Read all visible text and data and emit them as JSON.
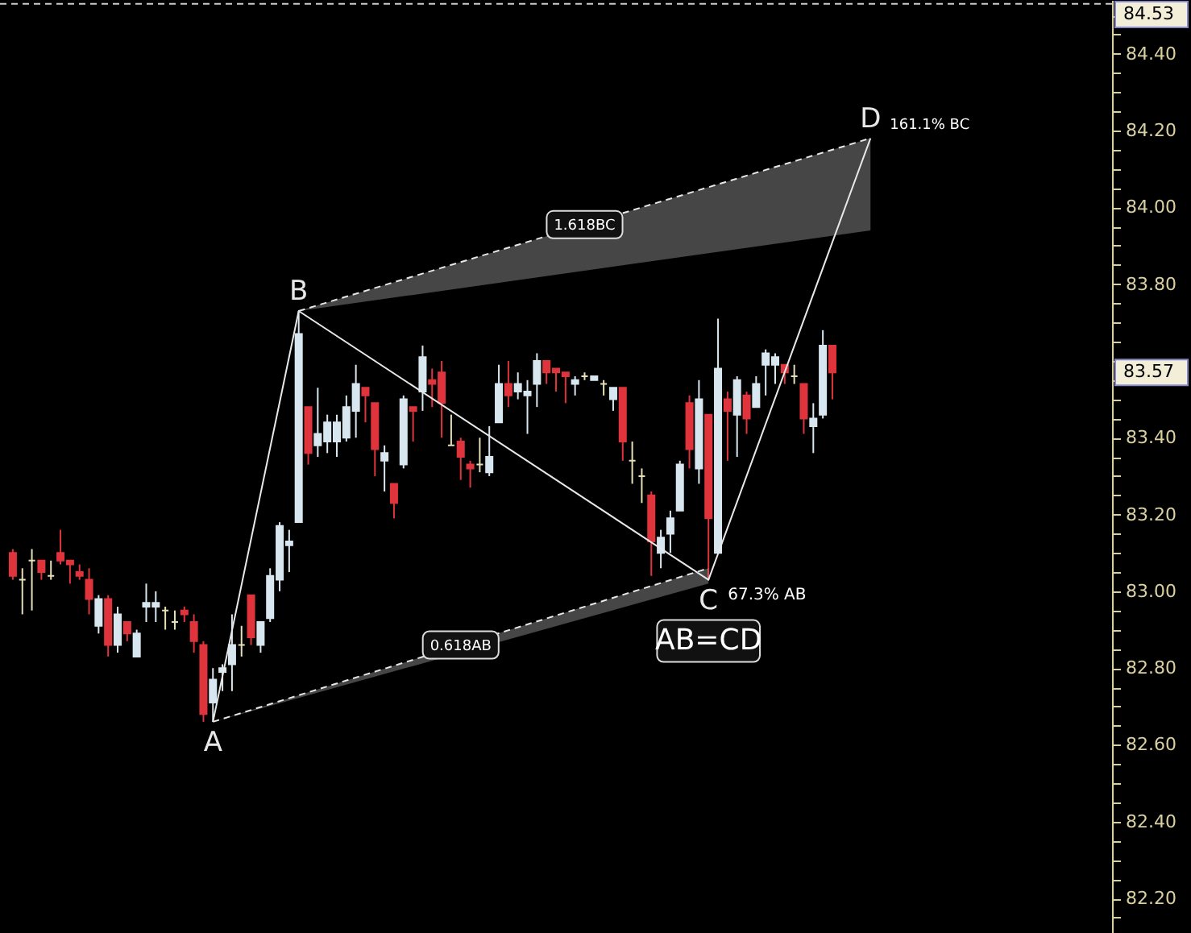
{
  "chart_data": {
    "type": "candlestick",
    "categories": [
      null,
      null,
      null,
      null,
      null,
      null,
      null,
      null,
      null,
      null,
      null,
      null,
      null,
      null,
      null,
      null,
      null,
      null,
      null,
      null,
      null,
      null,
      null,
      null,
      null,
      null,
      null,
      null,
      null,
      null,
      null,
      null,
      null,
      null,
      null,
      null,
      null,
      null,
      null,
      null,
      null,
      null,
      null,
      null,
      null,
      null,
      null,
      null,
      null,
      null,
      null,
      null,
      null,
      null,
      null,
      null,
      null,
      null,
      null,
      null,
      null,
      null,
      null,
      null,
      null,
      null,
      null,
      null,
      null,
      null,
      null,
      null,
      null,
      null,
      null,
      null,
      null,
      null,
      null,
      null,
      null,
      null,
      null,
      null,
      null,
      null,
      null,
      null,
      null,
      null,
      null,
      null,
      null,
      null,
      null,
      null,
      null,
      null,
      null,
      null,
      null,
      null,
      null,
      null,
      null,
      null,
      null,
      null,
      null,
      null,
      null,
      null,
      null,
      null,
      null
    ],
    "ohlc": [
      [
        83.1,
        83.11,
        83.03,
        83.04
      ],
      [
        83.03,
        83.06,
        82.94,
        83.03
      ],
      [
        83.08,
        83.11,
        82.95,
        83.08
      ],
      [
        83.08,
        83.08,
        83.03,
        83.05
      ],
      [
        83.04,
        83.08,
        83.03,
        83.04
      ],
      [
        83.1,
        83.16,
        83.07,
        83.08
      ],
      [
        83.08,
        83.08,
        83.02,
        83.07
      ],
      [
        83.05,
        83.07,
        83.03,
        83.04
      ],
      [
        83.03,
        83.06,
        82.94,
        82.98
      ],
      [
        82.91,
        82.99,
        82.89,
        82.98
      ],
      [
        82.98,
        82.99,
        82.83,
        82.86
      ],
      [
        82.86,
        82.96,
        82.84,
        82.94
      ],
      [
        82.92,
        82.92,
        82.87,
        82.89
      ],
      [
        82.83,
        82.9,
        82.83,
        82.89
      ],
      [
        82.96,
        83.02,
        82.92,
        82.97
      ],
      [
        82.96,
        83.0,
        82.92,
        82.97
      ],
      [
        82.95,
        82.96,
        82.9,
        82.95
      ],
      [
        82.92,
        82.95,
        82.9,
        82.92
      ],
      [
        82.95,
        82.96,
        82.92,
        82.94
      ],
      [
        82.92,
        82.94,
        82.84,
        82.87
      ],
      [
        82.86,
        82.87,
        82.66,
        82.68
      ],
      [
        82.71,
        82.8,
        82.66,
        82.77
      ],
      [
        82.79,
        82.81,
        82.74,
        82.8
      ],
      [
        82.81,
        82.94,
        82.74,
        82.86
      ],
      [
        82.86,
        82.91,
        82.83,
        82.86
      ],
      [
        82.99,
        82.99,
        82.86,
        82.88
      ],
      [
        82.86,
        82.92,
        82.84,
        82.92
      ],
      [
        82.93,
        83.06,
        82.92,
        83.04
      ],
      [
        83.03,
        83.18,
        83.0,
        83.17
      ],
      [
        83.12,
        83.16,
        83.05,
        83.13
      ],
      [
        83.18,
        83.73,
        83.18,
        83.67
      ],
      [
        83.48,
        83.48,
        83.33,
        83.36
      ],
      [
        83.38,
        83.53,
        83.35,
        83.41
      ],
      [
        83.39,
        83.46,
        83.36,
        83.44
      ],
      [
        83.39,
        83.46,
        83.35,
        83.44
      ],
      [
        83.4,
        83.51,
        83.39,
        83.48
      ],
      [
        83.47,
        83.59,
        83.4,
        83.54
      ],
      [
        83.53,
        83.53,
        83.44,
        83.51
      ],
      [
        83.49,
        83.49,
        83.3,
        83.37
      ],
      [
        83.34,
        83.38,
        83.26,
        83.36
      ],
      [
        83.28,
        83.28,
        83.19,
        83.23
      ],
      [
        83.33,
        83.51,
        83.32,
        83.5
      ],
      [
        83.48,
        83.48,
        83.39,
        83.47
      ],
      [
        83.52,
        83.64,
        83.47,
        83.61
      ],
      [
        83.55,
        83.58,
        83.48,
        83.54
      ],
      [
        83.57,
        83.6,
        83.4,
        83.49
      ],
      [
        83.38,
        83.46,
        83.38,
        83.38
      ],
      [
        83.39,
        83.4,
        83.29,
        83.35
      ],
      [
        83.33,
        83.34,
        83.27,
        83.32
      ],
      [
        83.33,
        83.4,
        83.31,
        83.33
      ],
      [
        83.31,
        83.43,
        83.3,
        83.35
      ],
      [
        83.44,
        83.59,
        83.44,
        83.54
      ],
      [
        83.54,
        83.6,
        83.48,
        83.51
      ],
      [
        83.52,
        83.57,
        83.5,
        83.54
      ],
      [
        83.51,
        83.55,
        83.41,
        83.52
      ],
      [
        83.54,
        83.62,
        83.48,
        83.6
      ],
      [
        83.6,
        83.6,
        83.54,
        83.57
      ],
      [
        83.58,
        83.58,
        83.52,
        83.57
      ],
      [
        83.57,
        83.57,
        83.49,
        83.56
      ],
      [
        83.54,
        83.56,
        83.51,
        83.55
      ],
      [
        83.56,
        83.57,
        83.55,
        83.56
      ],
      [
        83.55,
        83.56,
        83.55,
        83.56
      ],
      [
        83.54,
        83.55,
        83.51,
        83.54
      ],
      [
        83.5,
        83.53,
        83.47,
        83.53
      ],
      [
        83.53,
        83.53,
        83.34,
        83.39
      ],
      [
        83.34,
        83.39,
        83.28,
        83.34
      ],
      [
        83.3,
        83.32,
        83.23,
        83.3
      ],
      [
        83.25,
        83.26,
        83.04,
        83.13
      ],
      [
        83.1,
        83.16,
        83.06,
        83.14
      ],
      [
        83.15,
        83.21,
        83.1,
        83.19
      ],
      [
        83.21,
        83.34,
        83.21,
        83.33
      ],
      [
        83.49,
        83.51,
        83.32,
        83.37
      ],
      [
        83.32,
        83.55,
        83.28,
        83.5
      ],
      [
        83.46,
        83.46,
        83.03,
        83.19
      ],
      [
        83.1,
        83.71,
        83.1,
        83.58
      ],
      [
        83.5,
        83.52,
        83.34,
        83.47
      ],
      [
        83.46,
        83.56,
        83.35,
        83.55
      ],
      [
        83.51,
        83.52,
        83.41,
        83.45
      ],
      [
        83.48,
        83.56,
        83.48,
        83.54
      ],
      [
        83.59,
        83.63,
        83.51,
        83.62
      ],
      [
        83.59,
        83.62,
        83.54,
        83.61
      ],
      [
        83.59,
        83.59,
        83.54,
        83.57
      ],
      [
        83.56,
        83.59,
        83.54,
        83.56
      ],
      [
        83.54,
        83.54,
        83.41,
        83.45
      ],
      [
        83.43,
        83.49,
        83.36,
        83.45
      ],
      [
        83.46,
        83.68,
        83.45,
        83.64
      ],
      [
        83.64,
        83.64,
        83.5,
        83.57
      ],
      null,
      null,
      null,
      null,
      null,
      null,
      null,
      null,
      null,
      null,
      null,
      null,
      null,
      null,
      null,
      null,
      null,
      null,
      null,
      null,
      null,
      null,
      null,
      null,
      null,
      null,
      null,
      null
    ],
    "colors": [
      "#e0343c",
      "#e6dfb8",
      "#e6dfb8",
      "#e0343c",
      "#e6dfb8",
      "#e0343c",
      "#e0343c",
      "#e0343c",
      "#e0343c",
      "#d8e6f0",
      "#e0343c",
      "#d8e6f0",
      "#e0343c",
      "#d8e6f0",
      "#d8e6f0",
      "#d8e6f0",
      "#e6dfb8",
      "#e6dfb8",
      "#e0343c",
      "#e0343c",
      "#e0343c",
      "#d8e6f0",
      "#d8e6f0",
      "#d8e6f0",
      "#e6dfb8",
      "#e0343c",
      "#d8e6f0",
      "#d8e6f0",
      "#d8e6f0",
      "#d8e6f0",
      "#d8e6f0",
      "#e0343c",
      "#d8e6f0",
      "#d8e6f0",
      "#d8e6f0",
      "#d8e6f0",
      "#d8e6f0",
      "#e0343c",
      "#e0343c",
      "#d8e6f0",
      "#e0343c",
      "#d8e6f0",
      "#e0343c",
      "#d8e6f0",
      "#e0343c",
      "#e0343c",
      "#e6dfb8",
      "#e0343c",
      "#e0343c",
      "#e6dfb8",
      "#d8e6f0",
      "#d8e6f0",
      "#e0343c",
      "#d8e6f0",
      "#d8e6f0",
      "#d8e6f0",
      "#e0343c",
      "#e0343c",
      "#e0343c",
      "#d8e6f0",
      "#e6dfb8",
      "#d8e6f0",
      "#e6dfb8",
      "#d8e6f0",
      "#e0343c",
      "#e6dfb8",
      "#e6dfb8",
      "#e0343c",
      "#d8e6f0",
      "#d8e6f0",
      "#d8e6f0",
      "#e0343c",
      "#d8e6f0",
      "#e0343c",
      "#d8e6f0",
      "#e0343c",
      "#d8e6f0",
      "#e0343c",
      "#d8e6f0",
      "#d8e6f0",
      "#d8e6f0",
      "#e0343c",
      "#e6dfb8",
      "#e0343c",
      "#d8e6f0",
      "#d8e6f0",
      "#e0343c",
      null,
      null,
      null,
      null,
      null,
      null,
      null,
      null,
      null,
      null,
      null,
      null,
      null,
      null,
      null,
      null,
      null,
      null,
      null,
      null,
      null,
      null,
      null,
      null,
      null,
      null,
      null,
      null
    ],
    "series": [
      {
        "type": "line",
        "color": "#e8e8e8",
        "values": [
          null,
          null,
          null,
          null,
          null,
          null,
          null,
          null,
          null,
          null,
          null,
          null,
          null,
          null,
          null,
          null,
          null,
          null,
          null,
          null,
          null,
          82.66,
          null,
          null,
          null,
          null,
          null,
          null,
          null,
          null,
          83.73,
          null,
          null,
          null,
          null,
          null,
          null,
          null,
          null,
          null,
          null,
          null,
          null,
          null,
          null,
          null,
          null,
          null,
          null,
          null,
          null,
          null,
          null,
          null,
          null,
          null,
          null,
          null,
          null,
          null,
          null,
          null,
          null,
          null,
          null,
          null,
          null,
          null,
          null,
          null,
          null,
          null,
          null,
          83.03,
          null,
          null,
          null,
          null,
          null,
          null,
          null,
          null,
          null,
          null,
          null,
          null,
          null,
          null,
          null,
          null,
          84.18,
          null,
          null,
          null,
          null,
          null,
          null,
          null,
          null,
          null,
          null,
          null,
          null,
          null,
          null,
          null,
          null,
          null,
          null,
          null,
          null,
          null,
          null,
          null,
          null
        ],
        "value_labels": [
          null,
          null,
          null,
          null,
          null,
          null,
          null,
          null,
          null,
          null,
          null,
          null,
          null,
          null,
          null,
          null,
          null,
          null,
          null,
          null,
          null,
          "A",
          null,
          null,
          null,
          null,
          null,
          null,
          null,
          null,
          "B",
          null,
          null,
          null,
          null,
          null,
          null,
          null,
          null,
          null,
          null,
          null,
          null,
          null,
          null,
          null,
          null,
          null,
          null,
          null,
          null,
          null,
          null,
          null,
          null,
          null,
          null,
          null,
          null,
          null,
          null,
          null,
          null,
          null,
          null,
          null,
          null,
          null,
          null,
          null,
          null,
          null,
          null,
          "C",
          null,
          null,
          null,
          null,
          null,
          null,
          null,
          null,
          null,
          null,
          null,
          null,
          null,
          null,
          null,
          null,
          "D",
          null,
          null,
          null,
          null,
          null,
          null,
          null,
          null,
          null,
          null,
          null,
          null,
          null,
          null,
          null,
          null,
          null,
          null,
          null,
          null,
          null,
          null,
          null,
          null
        ]
      },
      {
        "type": "line",
        "color": "#e8e8e8",
        "line_style": "dashed",
        "values": [
          null,
          null,
          null,
          null,
          null,
          null,
          null,
          null,
          null,
          null,
          null,
          null,
          null,
          null,
          null,
          null,
          null,
          null,
          null,
          null,
          null,
          82.66,
          null,
          null,
          null,
          null,
          null,
          null,
          null,
          null,
          null,
          null,
          null,
          null,
          null,
          null,
          null,
          null,
          null,
          null,
          null,
          null,
          null,
          null,
          null,
          null,
          null,
          null,
          null,
          null,
          null,
          null,
          null,
          null,
          null,
          null,
          null,
          null,
          null,
          null,
          null,
          null,
          null,
          null,
          null,
          null,
          null,
          null,
          null,
          null,
          null,
          null,
          null,
          83.06,
          null,
          null,
          null,
          null,
          null,
          null,
          null,
          null,
          null,
          null,
          null,
          null,
          null,
          null,
          null,
          null,
          null,
          null,
          null,
          null,
          null,
          null,
          null,
          null,
          null,
          null,
          null,
          null,
          null,
          null,
          null,
          null,
          null,
          null,
          null,
          null,
          null,
          null,
          null,
          null,
          null
        ],
        "upper": [
          null,
          null,
          null,
          null,
          null,
          null,
          null,
          null,
          null,
          null,
          null,
          null,
          null,
          null,
          null,
          null,
          null,
          null,
          null,
          null,
          null,
          82.66,
          null,
          null,
          null,
          null,
          null,
          null,
          null,
          null,
          null,
          null,
          null,
          null,
          null,
          null,
          null,
          null,
          null,
          null,
          null,
          null,
          null,
          null,
          null,
          null,
          null,
          null,
          null,
          null,
          null,
          null,
          null,
          null,
          null,
          null,
          null,
          null,
          null,
          null,
          null,
          null,
          null,
          null,
          null,
          null,
          null,
          null,
          null,
          null,
          null,
          null,
          null,
          83.06,
          null,
          null,
          null,
          null,
          null,
          null,
          null,
          null,
          null,
          null,
          null,
          null,
          null,
          null,
          null,
          null,
          null,
          null,
          null,
          null,
          null,
          null,
          null,
          null,
          null,
          null,
          null,
          null,
          null,
          null,
          null,
          null,
          null,
          null,
          null,
          null,
          null,
          null,
          null,
          null,
          null
        ],
        "lower": [
          null,
          null,
          null,
          null,
          null,
          null,
          null,
          null,
          null,
          null,
          null,
          null,
          null,
          null,
          null,
          null,
          null,
          null,
          null,
          null,
          null,
          82.66,
          null,
          null,
          null,
          null,
          null,
          null,
          null,
          null,
          null,
          null,
          null,
          null,
          null,
          null,
          null,
          null,
          null,
          null,
          null,
          null,
          null,
          null,
          null,
          null,
          null,
          null,
          null,
          null,
          null,
          null,
          null,
          null,
          null,
          null,
          null,
          null,
          null,
          null,
          null,
          null,
          null,
          null,
          null,
          null,
          null,
          null,
          null,
          null,
          null,
          null,
          null,
          83.02,
          null,
          null,
          null,
          null,
          null,
          null,
          null,
          null,
          null,
          null,
          null,
          null,
          null,
          null,
          null,
          null,
          null,
          null,
          null,
          null,
          null,
          null,
          null,
          null,
          null,
          null,
          null,
          null,
          null,
          null,
          null,
          null,
          null,
          null,
          null,
          null,
          null,
          null,
          null,
          null,
          null
        ]
      },
      {
        "type": "line",
        "color": "#e8e8e8",
        "line_style": "dashed",
        "values": [
          null,
          null,
          null,
          null,
          null,
          null,
          null,
          null,
          null,
          null,
          null,
          null,
          null,
          null,
          null,
          null,
          null,
          null,
          null,
          null,
          null,
          null,
          null,
          null,
          null,
          null,
          null,
          null,
          null,
          null,
          83.73,
          null,
          null,
          null,
          null,
          null,
          null,
          null,
          null,
          null,
          null,
          null,
          null,
          null,
          null,
          null,
          null,
          null,
          null,
          null,
          null,
          null,
          null,
          null,
          null,
          null,
          null,
          null,
          null,
          null,
          null,
          null,
          null,
          null,
          null,
          null,
          null,
          null,
          null,
          null,
          null,
          null,
          null,
          null,
          null,
          null,
          null,
          null,
          null,
          null,
          null,
          null,
          null,
          null,
          null,
          null,
          null,
          null,
          null,
          null,
          84.18,
          null,
          null,
          null,
          null,
          null,
          null,
          null,
          null,
          null,
          null,
          null,
          null,
          null,
          null,
          null,
          null,
          null,
          null,
          null,
          null,
          null,
          null,
          null,
          null
        ],
        "upper": [
          null,
          null,
          null,
          null,
          null,
          null,
          null,
          null,
          null,
          null,
          null,
          null,
          null,
          null,
          null,
          null,
          null,
          null,
          null,
          null,
          null,
          null,
          null,
          null,
          null,
          null,
          null,
          null,
          null,
          null,
          83.73,
          null,
          null,
          null,
          null,
          null,
          null,
          null,
          null,
          null,
          null,
          null,
          null,
          null,
          null,
          null,
          null,
          null,
          null,
          null,
          null,
          null,
          null,
          null,
          null,
          null,
          null,
          null,
          null,
          null,
          null,
          null,
          null,
          null,
          null,
          null,
          null,
          null,
          null,
          null,
          null,
          null,
          null,
          null,
          null,
          null,
          null,
          null,
          null,
          null,
          null,
          null,
          null,
          null,
          null,
          null,
          null,
          null,
          null,
          null,
          84.18,
          null,
          null,
          null,
          null,
          null,
          null,
          null,
          null,
          null,
          null,
          null,
          null,
          null,
          null,
          null,
          null,
          null,
          null,
          null,
          null,
          null,
          null,
          null,
          null
        ],
        "lower": [
          null,
          null,
          null,
          null,
          null,
          null,
          null,
          null,
          null,
          null,
          null,
          null,
          null,
          null,
          null,
          null,
          null,
          null,
          null,
          null,
          null,
          null,
          null,
          null,
          null,
          null,
          null,
          null,
          null,
          null,
          83.73,
          null,
          null,
          null,
          null,
          null,
          null,
          null,
          null,
          null,
          null,
          null,
          null,
          null,
          null,
          null,
          null,
          null,
          null,
          null,
          null,
          null,
          null,
          null,
          null,
          null,
          null,
          null,
          null,
          null,
          null,
          null,
          null,
          null,
          null,
          null,
          null,
          null,
          null,
          null,
          null,
          null,
          null,
          null,
          null,
          null,
          null,
          null,
          null,
          null,
          null,
          null,
          null,
          null,
          null,
          null,
          null,
          null,
          null,
          null,
          83.94,
          null,
          null,
          null,
          null,
          null,
          null,
          null,
          null,
          null,
          null,
          null,
          null,
          null,
          null,
          null,
          null,
          null,
          null,
          null,
          null,
          null,
          null,
          null,
          null
        ]
      }
    ],
    "annotations": [
      "67.3% AB",
      "161.1% BC",
      "0.618AB",
      "1.618BC",
      "AB=CD",
      "83.57"
    ],
    "ref_lines": [
      {
        "axis": "y",
        "value": 84.53,
        "label": "84.53",
        "line_style": "dashed"
      }
    ],
    "ylim": [
      82.11,
      84.54
    ],
    "yticks": [
      {
        "value": 82.15,
        "label": null
      },
      {
        "value": 82.2,
        "label": "82.20"
      },
      {
        "value": 82.25,
        "label": null
      },
      {
        "value": 82.3,
        "label": null
      },
      {
        "value": 82.35,
        "label": null
      },
      {
        "value": 82.4,
        "label": "82.40"
      },
      {
        "value": 82.45,
        "label": null
      },
      {
        "value": 82.5,
        "label": null
      },
      {
        "value": 82.55,
        "label": null
      },
      {
        "value": 82.6,
        "label": "82.60"
      },
      {
        "value": 82.65,
        "label": null
      },
      {
        "value": 82.7,
        "label": null
      },
      {
        "value": 82.75,
        "label": null
      },
      {
        "value": 82.8,
        "label": "82.80"
      },
      {
        "value": 82.85,
        "label": null
      },
      {
        "value": 82.9,
        "label": null
      },
      {
        "value": 82.95,
        "label": null
      },
      {
        "value": 83,
        "label": "83.00"
      },
      {
        "value": 83.05,
        "label": null
      },
      {
        "value": 83.1,
        "label": null
      },
      {
        "value": 83.15,
        "label": null
      },
      {
        "value": 83.2,
        "label": "83.20"
      },
      {
        "value": 83.25,
        "label": null
      },
      {
        "value": 83.3,
        "label": null
      },
      {
        "value": 83.35,
        "label": null
      },
      {
        "value": 83.4,
        "label": "83.40"
      },
      {
        "value": 83.45,
        "label": null
      },
      {
        "value": 83.5,
        "label": null
      },
      {
        "value": 83.55,
        "label": null
      },
      {
        "value": 83.6,
        "label": null
      },
      {
        "value": 83.65,
        "label": null
      },
      {
        "value": 83.7,
        "label": null
      },
      {
        "value": 83.75,
        "label": null
      },
      {
        "value": 83.8,
        "label": "83.80"
      },
      {
        "value": 83.85,
        "label": null
      },
      {
        "value": 83.9,
        "label": null
      },
      {
        "value": 83.95,
        "label": null
      },
      {
        "value": 84,
        "label": "84.00"
      },
      {
        "value": 84.05,
        "label": null
      },
      {
        "value": 84.1,
        "label": null
      },
      {
        "value": 84.15,
        "label": null
      },
      {
        "value": 84.2,
        "label": "84.20"
      },
      {
        "value": 84.25,
        "label": null
      },
      {
        "value": 84.3,
        "label": null
      },
      {
        "value": 84.35,
        "label": null
      },
      {
        "value": 84.4,
        "label": "84.40"
      },
      {
        "value": 84.45,
        "label": null
      },
      {
        "value": 84.5,
        "label": null
      }
    ],
    "tick_labels": "y"
  }
}
